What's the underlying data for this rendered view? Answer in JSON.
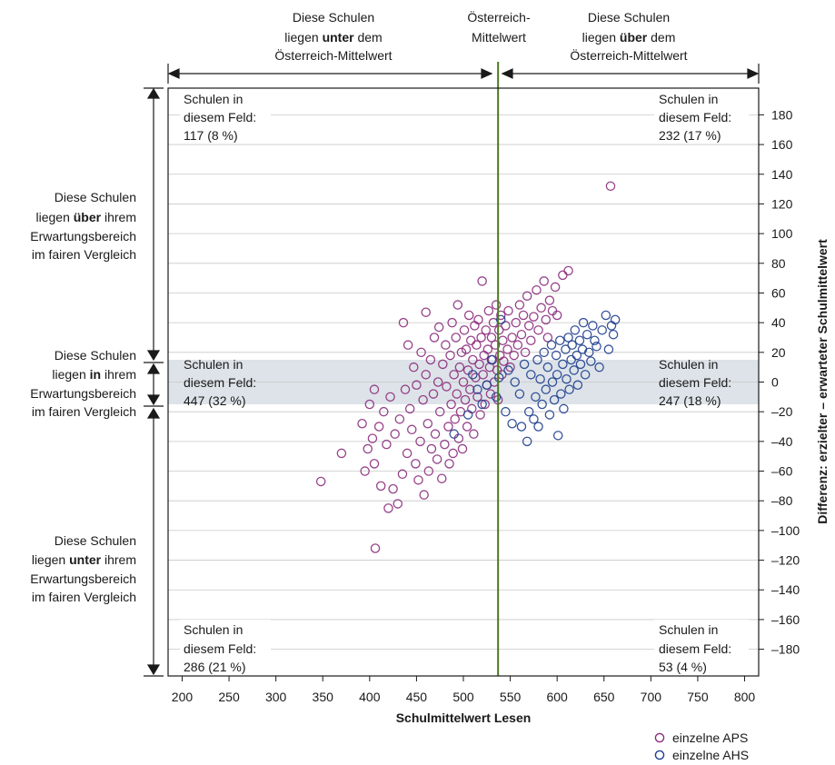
{
  "chart_data": {
    "type": "scatter",
    "xlabel": "Schulmittelwert Lesen",
    "ylabel": "Differenz: erzielter – erwarteter Schulmittelwert",
    "xlim": [
      185,
      815
    ],
    "ylim": [
      -198,
      198
    ],
    "x_ticks": [
      "200",
      "250",
      "300",
      "350",
      "400",
      "450",
      "500",
      "550",
      "600",
      "650",
      "700",
      "750",
      "800"
    ],
    "y_ticks": [
      "180",
      "160",
      "140",
      "120",
      "100",
      "80",
      "60",
      "40",
      "20",
      "0",
      "–20",
      "–40",
      "–60",
      "–80",
      "–100",
      "–120",
      "–140",
      "–160",
      "–180"
    ],
    "austria_mean": 537,
    "fair_band": [
      -15,
      15
    ],
    "colors": {
      "aps": "#8b2c7d",
      "ahs": "#1f3f8f",
      "mean_line": "#4a7a1e",
      "band": "#dde3e8"
    },
    "legend": [
      {
        "name": "einzelne APS",
        "color": "#8b2c7d"
      },
      {
        "name": "einzelne AHS",
        "color": "#1f3f8f"
      }
    ],
    "top_labels": {
      "left": [
        "Diese Schulen",
        "liegen ",
        "unter",
        " dem",
        "Österreich-Mittelwert"
      ],
      "center": [
        "Österreich-",
        "Mittelwert"
      ],
      "right": [
        "Diese Schulen",
        "liegen ",
        "über",
        " dem",
        "Österreich-Mittelwert"
      ]
    },
    "side_labels": {
      "over": [
        "Diese Schulen",
        "liegen ",
        "über",
        " ihrem",
        "Erwartungsbereich",
        "im fairen Vergleich"
      ],
      "in": [
        "Diese Schulen",
        "liegen ",
        "in",
        " ihrem",
        "Erwartungsbereich",
        "im fairen Vergleich"
      ],
      "under": [
        "Diese Schulen",
        "liegen ",
        "unter",
        " ihrem",
        "Erwartungsbereich",
        "im fairen Vergleich"
      ]
    },
    "field_boxes": {
      "top_left": [
        "Schulen in",
        "diesem Feld:",
        "117  (8 %)"
      ],
      "top_right": [
        "Schulen in",
        "diesem Feld:",
        "232  (17 %)"
      ],
      "mid_left": [
        "Schulen in",
        "diesem Feld:",
        "447  (32 %)"
      ],
      "mid_right": [
        "Schulen in",
        "diesem Feld:",
        "247  (18 %)"
      ],
      "bottom_left": [
        "Schulen in",
        "diesem Feld:",
        "286  (21 %)"
      ],
      "bottom_right": [
        "Schulen in",
        "diesem Feld:",
        "53  (4 %)"
      ]
    },
    "series": [
      {
        "name": "einzelne APS",
        "points": [
          [
            348,
            -67
          ],
          [
            370,
            -48
          ],
          [
            392,
            -28
          ],
          [
            395,
            -60
          ],
          [
            398,
            -45
          ],
          [
            400,
            -15
          ],
          [
            403,
            -38
          ],
          [
            405,
            -5
          ],
          [
            405,
            -55
          ],
          [
            406,
            -112
          ],
          [
            410,
            -30
          ],
          [
            412,
            -70
          ],
          [
            415,
            -20
          ],
          [
            418,
            -42
          ],
          [
            420,
            -85
          ],
          [
            422,
            -10
          ],
          [
            425,
            -72
          ],
          [
            427,
            -35
          ],
          [
            430,
            -82
          ],
          [
            432,
            -25
          ],
          [
            435,
            -62
          ],
          [
            436,
            40
          ],
          [
            438,
            -5
          ],
          [
            440,
            -48
          ],
          [
            441,
            25
          ],
          [
            443,
            -18
          ],
          [
            445,
            -32
          ],
          [
            447,
            10
          ],
          [
            449,
            -55
          ],
          [
            450,
            -2
          ],
          [
            452,
            -66
          ],
          [
            454,
            -40
          ],
          [
            455,
            20
          ],
          [
            457,
            -12
          ],
          [
            458,
            -76
          ],
          [
            460,
            5
          ],
          [
            460,
            47
          ],
          [
            462,
            -28
          ],
          [
            463,
            -60
          ],
          [
            465,
            15
          ],
          [
            466,
            -45
          ],
          [
            468,
            -8
          ],
          [
            469,
            30
          ],
          [
            470,
            -35
          ],
          [
            472,
            -52
          ],
          [
            473,
            0
          ],
          [
            474,
            37
          ],
          [
            475,
            -20
          ],
          [
            477,
            -65
          ],
          [
            478,
            12
          ],
          [
            480,
            -42
          ],
          [
            481,
            25
          ],
          [
            482,
            -3
          ],
          [
            484,
            -30
          ],
          [
            485,
            -55
          ],
          [
            486,
            18
          ],
          [
            487,
            -15
          ],
          [
            488,
            40
          ],
          [
            489,
            -48
          ],
          [
            490,
            5
          ],
          [
            491,
            -25
          ],
          [
            492,
            30
          ],
          [
            493,
            -8
          ],
          [
            494,
            52
          ],
          [
            495,
            -38
          ],
          [
            496,
            10
          ],
          [
            497,
            -20
          ],
          [
            498,
            20
          ],
          [
            499,
            -45
          ],
          [
            500,
            0
          ],
          [
            501,
            35
          ],
          [
            502,
            -12
          ],
          [
            503,
            22
          ],
          [
            504,
            -30
          ],
          [
            505,
            8
          ],
          [
            506,
            45
          ],
          [
            507,
            -5
          ],
          [
            508,
            28
          ],
          [
            509,
            -18
          ],
          [
            510,
            15
          ],
          [
            511,
            -35
          ],
          [
            512,
            38
          ],
          [
            513,
            3
          ],
          [
            514,
            25
          ],
          [
            515,
            -10
          ],
          [
            516,
            42
          ],
          [
            517,
            12
          ],
          [
            518,
            -22
          ],
          [
            519,
            30
          ],
          [
            520,
            68
          ],
          [
            521,
            5
          ],
          [
            522,
            18
          ],
          [
            523,
            -15
          ],
          [
            524,
            35
          ],
          [
            525,
            -2
          ],
          [
            526,
            22
          ],
          [
            527,
            48
          ],
          [
            528,
            10
          ],
          [
            529,
            -8
          ],
          [
            530,
            30
          ],
          [
            531,
            15
          ],
          [
            532,
            40
          ],
          [
            533,
            0
          ],
          [
            534,
            25
          ],
          [
            535,
            52
          ],
          [
            536,
            8
          ],
          [
            537,
            -12
          ],
          [
            538,
            35
          ],
          [
            539,
            18
          ],
          [
            540,
            45
          ],
          [
            541,
            5
          ],
          [
            542,
            28
          ],
          [
            543,
            14
          ],
          [
            545,
            38
          ],
          [
            547,
            22
          ],
          [
            548,
            48
          ],
          [
            550,
            10
          ],
          [
            552,
            30
          ],
          [
            554,
            18
          ],
          [
            556,
            40
          ],
          [
            558,
            25
          ],
          [
            560,
            52
          ],
          [
            562,
            32
          ],
          [
            564,
            45
          ],
          [
            566,
            20
          ],
          [
            568,
            58
          ],
          [
            570,
            38
          ],
          [
            572,
            28
          ],
          [
            575,
            44
          ],
          [
            578,
            62
          ],
          [
            580,
            35
          ],
          [
            583,
            50
          ],
          [
            586,
            68
          ],
          [
            588,
            42
          ],
          [
            590,
            30
          ],
          [
            592,
            55
          ],
          [
            595,
            48
          ],
          [
            598,
            64
          ],
          [
            600,
            45
          ],
          [
            606,
            72
          ],
          [
            612,
            75
          ],
          [
            657,
            132
          ]
        ]
      },
      {
        "name": "einzelne AHS",
        "points": [
          [
            490,
            -35
          ],
          [
            505,
            -22
          ],
          [
            510,
            5
          ],
          [
            515,
            -5
          ],
          [
            520,
            -15
          ],
          [
            525,
            -2
          ],
          [
            530,
            15
          ],
          [
            535,
            -10
          ],
          [
            538,
            3
          ],
          [
            540,
            42
          ],
          [
            545,
            -20
          ],
          [
            548,
            8
          ],
          [
            552,
            -28
          ],
          [
            555,
            0
          ],
          [
            560,
            -8
          ],
          [
            562,
            -30
          ],
          [
            565,
            12
          ],
          [
            568,
            -40
          ],
          [
            570,
            -20
          ],
          [
            572,
            5
          ],
          [
            575,
            -25
          ],
          [
            577,
            -10
          ],
          [
            579,
            15
          ],
          [
            580,
            -30
          ],
          [
            582,
            2
          ],
          [
            584,
            -15
          ],
          [
            586,
            20
          ],
          [
            588,
            -5
          ],
          [
            590,
            10
          ],
          [
            592,
            -22
          ],
          [
            594,
            25
          ],
          [
            595,
            0
          ],
          [
            597,
            -12
          ],
          [
            599,
            18
          ],
          [
            600,
            5
          ],
          [
            601,
            -36
          ],
          [
            603,
            28
          ],
          [
            604,
            -8
          ],
          [
            606,
            12
          ],
          [
            607,
            -18
          ],
          [
            609,
            22
          ],
          [
            610,
            2
          ],
          [
            612,
            30
          ],
          [
            613,
            -5
          ],
          [
            615,
            15
          ],
          [
            616,
            25
          ],
          [
            618,
            8
          ],
          [
            619,
            35
          ],
          [
            621,
            18
          ],
          [
            622,
            -2
          ],
          [
            624,
            28
          ],
          [
            625,
            12
          ],
          [
            627,
            22
          ],
          [
            628,
            40
          ],
          [
            630,
            5
          ],
          [
            632,
            32
          ],
          [
            634,
            20
          ],
          [
            636,
            14
          ],
          [
            638,
            38
          ],
          [
            640,
            28
          ],
          [
            642,
            24
          ],
          [
            645,
            10
          ],
          [
            648,
            35
          ],
          [
            652,
            45
          ],
          [
            655,
            22
          ],
          [
            658,
            38
          ],
          [
            660,
            32
          ],
          [
            662,
            42
          ]
        ]
      }
    ]
  }
}
